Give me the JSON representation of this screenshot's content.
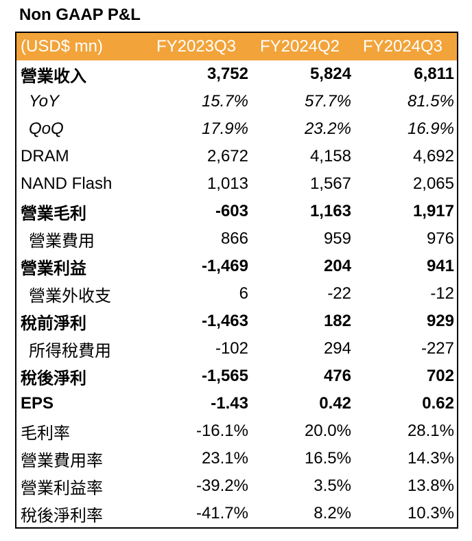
{
  "title": "Non GAAP P&L",
  "table": {
    "header": [
      "(USD$  mn)",
      "FY2023Q3",
      "FY2024Q2",
      "FY2024Q3"
    ],
    "rows": [
      [
        "營業收入",
        "3,752",
        "5,824",
        "6,811"
      ],
      [
        "YoY",
        "15.7%",
        "57.7%",
        "81.5%"
      ],
      [
        "QoQ",
        "17.9%",
        "23.2%",
        "16.9%"
      ],
      [
        "DRAM",
        "2,672",
        "4,158",
        "4,692"
      ],
      [
        "NAND Flash",
        "1,013",
        "1,567",
        "2,065"
      ],
      [
        "營業毛利",
        "-603",
        "1,163",
        "1,917"
      ],
      [
        "營業費用",
        "866",
        "959",
        "976"
      ],
      [
        "營業利益",
        "-1,469",
        "204",
        "941"
      ],
      [
        "營業外收支",
        "6",
        "-22",
        "-12"
      ],
      [
        "稅前淨利",
        "-1,463",
        "182",
        "929"
      ],
      [
        "所得稅費用",
        "-102",
        "294",
        "-227"
      ],
      [
        "稅後淨利",
        "-1,565",
        "476",
        "702"
      ],
      [
        "EPS",
        "-1.43",
        "0.42",
        "0.62"
      ],
      [
        "毛利率",
        "-16.1%",
        "20.0%",
        "28.1%"
      ],
      [
        "營業費用率",
        "23.1%",
        "16.5%",
        "14.3%"
      ],
      [
        "營業利益率",
        "-39.2%",
        "3.5%",
        "13.8%"
      ],
      [
        "稅後淨利率",
        "-41.7%",
        "8.2%",
        "10.3%"
      ]
    ]
  }
}
